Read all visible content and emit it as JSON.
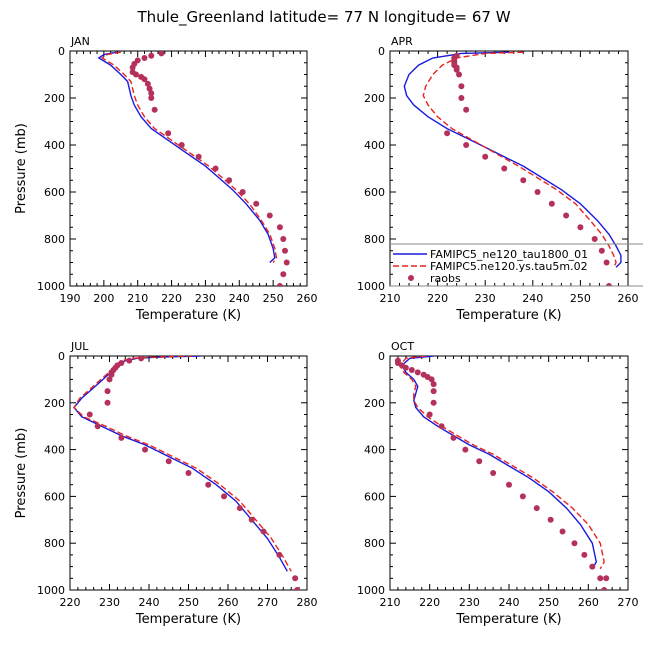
{
  "figure": {
    "title": "Thule_Greenland   latitude= 77 N longitude= 67 W"
  },
  "colors": {
    "model1": "#1a1adf",
    "model2": "#e8231e",
    "obs": "#b3315a",
    "legend_divider": "#888888"
  },
  "legend": {
    "placement": "inside APR panel, lower-left",
    "entries": [
      {
        "label": "FAMIPC5_ne120_tau1800_01",
        "style": "solid",
        "color": "#1a1adf"
      },
      {
        "label": "FAMIPC5.ne120.ys.tau5m.02",
        "style": "dashed",
        "color": "#e8231e"
      },
      {
        "label": "raobs",
        "style": "dots",
        "color": "#b3315a"
      }
    ]
  },
  "chart_data": [
    {
      "type": "line",
      "panel": "JAN",
      "xlabel": "Temperature (K)",
      "ylabel": "Pressure (mb)",
      "xlim": [
        190,
        260
      ],
      "ylim": [
        1000,
        0
      ],
      "xticks": [
        190,
        200,
        210,
        220,
        230,
        240,
        250,
        260
      ],
      "yticks": [
        0,
        200,
        400,
        600,
        800,
        1000
      ],
      "series": [
        {
          "name": "FAMIPC5_ne120_tau1800_01",
          "style": "solid",
          "x": [
            204,
            200,
            198.5,
            202,
            205,
            207,
            207.5,
            208,
            209,
            211,
            214,
            218,
            222,
            226,
            230,
            234,
            238,
            242,
            246,
            248.5,
            250,
            250.5,
            249
          ],
          "y": [
            5,
            15,
            30,
            60,
            100,
            130,
            160,
            190,
            230,
            280,
            330,
            370,
            410,
            450,
            490,
            540,
            590,
            650,
            720,
            780,
            840,
            880,
            900
          ]
        },
        {
          "name": "FAMIPC5.ne120.ys.tau5m.02",
          "style": "dashed",
          "x": [
            205,
            201,
            199.5,
            203,
            206,
            208,
            208.5,
            209,
            210,
            212,
            215,
            219,
            223,
            227,
            231,
            235,
            239,
            243,
            246.5,
            249,
            250.5,
            251,
            250
          ],
          "y": [
            5,
            15,
            30,
            60,
            100,
            130,
            160,
            190,
            230,
            280,
            330,
            370,
            410,
            450,
            490,
            540,
            590,
            650,
            720,
            780,
            840,
            880,
            900
          ]
        },
        {
          "name": "raobs",
          "style": "dots",
          "x": [
            217,
            214,
            212,
            210,
            209,
            208.5,
            208.5,
            209.5,
            211,
            212,
            213,
            213.5,
            214,
            214,
            215,
            219,
            223,
            228,
            233,
            237,
            241,
            245,
            249,
            252,
            253,
            253.5,
            254,
            253,
            252
          ],
          "y": [
            10,
            20,
            30,
            40,
            55,
            70,
            90,
            100,
            110,
            120,
            140,
            160,
            180,
            200,
            250,
            350,
            400,
            450,
            500,
            550,
            600,
            650,
            700,
            750,
            800,
            850,
            900,
            950,
            1000
          ]
        }
      ]
    },
    {
      "type": "line",
      "panel": "APR",
      "xlabel": "Temperature (K)",
      "ylabel": "",
      "xlim": [
        210,
        260
      ],
      "ylim": [
        1000,
        0
      ],
      "xticks": [
        210,
        220,
        230,
        240,
        250,
        260
      ],
      "yticks": [
        0,
        200,
        400,
        600,
        800,
        1000
      ],
      "series": [
        {
          "name": "FAMIPC5_ne120_tau1800_01",
          "style": "solid",
          "x": [
            235,
            225,
            219,
            216,
            214,
            213,
            213.5,
            215,
            218,
            222,
            226,
            230,
            234,
            238,
            242,
            246,
            250,
            253.5,
            256,
            257.5,
            258.5,
            258.5,
            257.5
          ],
          "y": [
            5,
            10,
            30,
            60,
            100,
            150,
            190,
            230,
            280,
            330,
            370,
            410,
            450,
            490,
            540,
            590,
            650,
            720,
            780,
            830,
            870,
            900,
            920
          ]
        },
        {
          "name": "FAMIPC5.ne120.ys.tau5m.02",
          "style": "dashed",
          "x": [
            238,
            230,
            224,
            221,
            219,
            217.5,
            217,
            218,
            220,
            223,
            226.5,
            230,
            233.5,
            237,
            241,
            245,
            249,
            252,
            254.5,
            256,
            257,
            257.5,
            257
          ],
          "y": [
            5,
            10,
            30,
            60,
            100,
            150,
            190,
            230,
            280,
            330,
            370,
            410,
            450,
            490,
            540,
            590,
            650,
            720,
            780,
            830,
            870,
            900,
            920
          ]
        },
        {
          "name": "raobs",
          "style": "dots",
          "x": [
            224,
            223.5,
            223.5,
            223.5,
            223.5,
            224,
            224,
            224.5,
            225,
            225,
            226,
            222,
            226,
            230,
            234,
            238,
            241,
            244,
            247,
            250,
            253,
            254.5,
            255.5,
            256
          ],
          "y": [
            20,
            30,
            40,
            50,
            60,
            70,
            80,
            100,
            150,
            200,
            250,
            350,
            400,
            450,
            500,
            550,
            600,
            650,
            700,
            750,
            800,
            850,
            900,
            1000
          ]
        }
      ]
    },
    {
      "type": "line",
      "panel": "JUL",
      "xlabel": "Temperature (K)",
      "ylabel": "Pressure (mb)",
      "xlim": [
        220,
        280
      ],
      "ylim": [
        1000,
        0
      ],
      "xticks": [
        220,
        230,
        240,
        250,
        260,
        270,
        280
      ],
      "yticks": [
        0,
        200,
        400,
        600,
        800,
        1000
      ],
      "series": [
        {
          "name": "FAMIPC5_ne120_tau1800_01",
          "style": "solid",
          "x": [
            253,
            242,
            237,
            234,
            232,
            231,
            229,
            227,
            225,
            223,
            221,
            223,
            228,
            233,
            239,
            245,
            251,
            257,
            262,
            266,
            270,
            273,
            275
          ],
          "y": [
            0,
            5,
            10,
            20,
            40,
            60,
            90,
            120,
            150,
            180,
            220,
            260,
            300,
            340,
            380,
            430,
            480,
            550,
            620,
            700,
            780,
            860,
            920
          ]
        },
        {
          "name": "FAMIPC5.ne120.ys.tau5m.02",
          "style": "dashed",
          "x": [
            251,
            241,
            236,
            233,
            231.5,
            230.5,
            228.5,
            226.5,
            224.5,
            222.5,
            221,
            223.5,
            229,
            234,
            240,
            246,
            252,
            258,
            263,
            267,
            271,
            274,
            276
          ],
          "y": [
            0,
            5,
            10,
            20,
            40,
            60,
            90,
            120,
            150,
            180,
            220,
            260,
            300,
            340,
            380,
            430,
            480,
            550,
            620,
            700,
            780,
            860,
            920
          ]
        },
        {
          "name": "raobs",
          "style": "dots",
          "x": [
            238,
            235,
            233,
            232,
            231.5,
            231,
            230.5,
            230.5,
            230,
            229.5,
            229.5,
            225,
            227,
            233,
            239,
            245,
            250,
            255,
            259,
            263,
            266,
            269,
            273,
            277,
            277.5
          ],
          "y": [
            10,
            20,
            30,
            40,
            50,
            60,
            70,
            80,
            100,
            150,
            200,
            250,
            300,
            350,
            400,
            450,
            500,
            550,
            600,
            650,
            700,
            750,
            850,
            950,
            1000
          ]
        }
      ]
    },
    {
      "type": "line",
      "panel": "OCT",
      "xlabel": "Temperature (K)",
      "ylabel": "",
      "xlim": [
        210,
        270
      ],
      "ylim": [
        1000,
        0
      ],
      "xticks": [
        210,
        220,
        230,
        240,
        250,
        260,
        270
      ],
      "yticks": [
        0,
        200,
        400,
        600,
        800,
        1000
      ],
      "series": [
        {
          "name": "FAMIPC5_ne120_tau1800_01",
          "style": "solid",
          "x": [
            221,
            215,
            213,
            214,
            216,
            217,
            216.5,
            216,
            216.5,
            218.5,
            222,
            226,
            230,
            235,
            240,
            245,
            250,
            254.5,
            258,
            261,
            262,
            261
          ],
          "y": [
            0,
            10,
            40,
            70,
            100,
            130,
            160,
            190,
            220,
            260,
            300,
            340,
            380,
            420,
            470,
            520,
            580,
            650,
            720,
            800,
            880,
            910
          ]
        },
        {
          "name": "FAMIPC5.ne120.ys.tau5m.02",
          "style": "dashed",
          "x": [
            219,
            214,
            212.5,
            213.5,
            215.5,
            216.5,
            216,
            216,
            217,
            219.5,
            223,
            227,
            231,
            236,
            241,
            246,
            251,
            256,
            260,
            263,
            264,
            263
          ],
          "y": [
            0,
            10,
            40,
            70,
            100,
            130,
            160,
            190,
            220,
            260,
            300,
            340,
            380,
            420,
            470,
            520,
            580,
            650,
            720,
            800,
            880,
            910
          ]
        },
        {
          "name": "raobs",
          "style": "dots",
          "x": [
            212,
            212,
            213,
            214,
            215.5,
            217,
            218.5,
            219.5,
            220.5,
            221,
            221,
            221,
            220,
            223,
            226,
            229,
            232.5,
            236,
            240,
            243.5,
            247,
            250.5,
            253.5,
            256.5,
            259,
            261,
            263,
            264,
            264.5
          ],
          "y": [
            20,
            30,
            40,
            50,
            60,
            70,
            80,
            90,
            100,
            120,
            150,
            200,
            250,
            300,
            350,
            400,
            450,
            500,
            550,
            600,
            650,
            700,
            750,
            800,
            850,
            900,
            950,
            1000,
            950
          ]
        }
      ]
    }
  ]
}
